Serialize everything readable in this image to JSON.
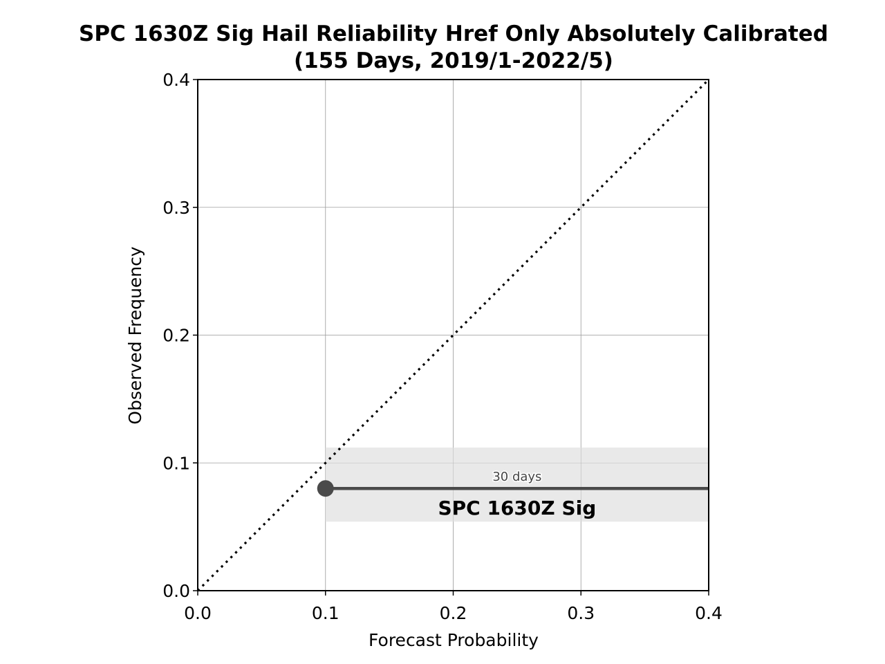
{
  "chart_data": {
    "type": "line",
    "title_line1": "SPC 1630Z Sig Hail Reliability Href Only Absolutely Calibrated",
    "title_line2": "(155 Days, 2019/1-2022/5)",
    "xlabel": "Forecast Probability",
    "ylabel": "Observed Frequency",
    "xlim": [
      0.0,
      0.4
    ],
    "ylim": [
      0.0,
      0.4
    ],
    "xticks": [
      "0.0",
      "0.1",
      "0.2",
      "0.3",
      "0.4"
    ],
    "yticks": [
      "0.0",
      "0.1",
      "0.2",
      "0.3",
      "0.4"
    ],
    "grid": true,
    "reference_line": {
      "x": [
        0.0,
        0.4
      ],
      "y": [
        0.0,
        0.4
      ],
      "style": "dotted"
    },
    "series": [
      {
        "name": "SPC 1630Z Sig",
        "annotation": "30 days",
        "x": [
          0.1,
          0.4
        ],
        "y": [
          0.08,
          0.08
        ],
        "band_y": [
          0.054,
          0.112
        ],
        "color": "#4a4a4a",
        "band_color": "#e9e9e9"
      }
    ]
  }
}
